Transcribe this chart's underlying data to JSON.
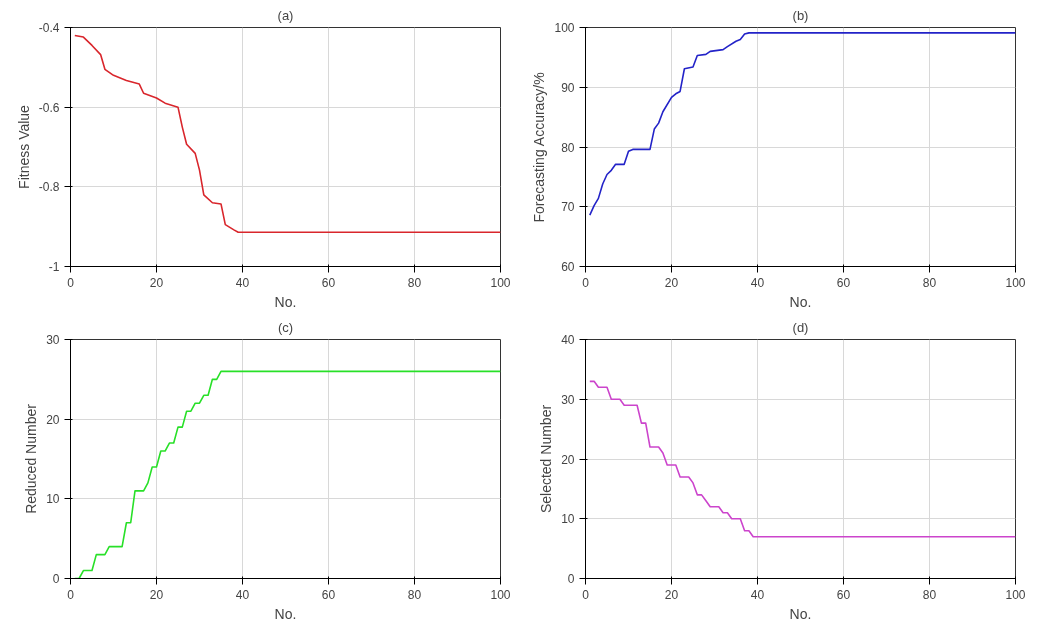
{
  "chart_data": [
    {
      "type": "line",
      "title": "(a)",
      "xlabel": "No.",
      "ylabel": "Fitness Value",
      "xlim": [
        0,
        100
      ],
      "ylim": [
        -1,
        -0.4
      ],
      "xticks": [
        0,
        20,
        40,
        60,
        80,
        100
      ],
      "yticks": [
        -1,
        -0.8,
        -0.6,
        -0.4
      ],
      "grid": true,
      "series": [
        {
          "color": "#d9262c",
          "x": [
            1,
            3,
            5,
            7,
            8,
            10,
            13,
            16,
            17,
            20,
            22,
            25,
            26,
            27,
            29,
            30,
            31,
            33,
            35,
            36,
            38,
            39,
            100
          ],
          "values": [
            -0.42,
            -0.424,
            -0.445,
            -0.468,
            -0.505,
            -0.52,
            -0.533,
            -0.542,
            -0.565,
            -0.577,
            -0.59,
            -0.6,
            -0.65,
            -0.693,
            -0.716,
            -0.758,
            -0.82,
            -0.84,
            -0.843,
            -0.895,
            -0.908,
            -0.914,
            -0.914
          ]
        }
      ]
    },
    {
      "type": "line",
      "title": "(b)",
      "xlabel": "No.",
      "ylabel": "Forecasting Accuracy/%",
      "xlim": [
        0,
        100
      ],
      "ylim": [
        60,
        100
      ],
      "xticks": [
        0,
        20,
        40,
        60,
        80,
        100
      ],
      "yticks": [
        60,
        70,
        80,
        90,
        100
      ],
      "grid": true,
      "series": [
        {
          "color": "#2323c8",
          "x": [
            1,
            2,
            3,
            4,
            5,
            6,
            7,
            9,
            10,
            11,
            15,
            16,
            17,
            18,
            20,
            21,
            22,
            23,
            25,
            26,
            28,
            29,
            32,
            33,
            35,
            36,
            37,
            38,
            100
          ],
          "values": [
            68.6,
            70.2,
            71.4,
            73.8,
            75.4,
            76.1,
            77.1,
            77.1,
            79.3,
            79.6,
            79.6,
            83,
            84,
            85.9,
            88.3,
            88.9,
            89.3,
            93.1,
            93.4,
            95.3,
            95.5,
            96,
            96.3,
            96.8,
            97.7,
            98,
            98.9,
            99.1,
            99.1
          ]
        }
      ]
    },
    {
      "type": "line",
      "title": "(c)",
      "xlabel": "No.",
      "ylabel": "Reduced Number",
      "xlim": [
        0,
        100
      ],
      "ylim": [
        0,
        30
      ],
      "xticks": [
        0,
        20,
        40,
        60,
        80,
        100
      ],
      "yticks": [
        0,
        10,
        20,
        30
      ],
      "grid": true,
      "series": [
        {
          "color": "#28e028",
          "x": [
            1,
            2,
            3,
            5,
            6,
            8,
            9,
            12,
            13,
            14,
            15,
            17,
            18,
            19,
            20,
            21,
            22,
            23,
            24,
            25,
            26,
            27,
            28,
            29,
            30,
            31,
            32,
            33,
            34,
            35,
            36,
            39,
            40,
            100
          ],
          "values": [
            0,
            0,
            1,
            1,
            3,
            3,
            4,
            4,
            7,
            7,
            11,
            11,
            12,
            14,
            14,
            16,
            16,
            17,
            17,
            19,
            19,
            21,
            21,
            22,
            22,
            23,
            23,
            25,
            25,
            26,
            26,
            26,
            26,
            26
          ]
        }
      ]
    },
    {
      "type": "line",
      "title": "(d)",
      "xlabel": "No.",
      "ylabel": "Selected Number",
      "xlim": [
        0,
        100
      ],
      "ylim": [
        0,
        40
      ],
      "xticks": [
        0,
        20,
        40,
        60,
        80,
        100
      ],
      "yticks": [
        0,
        10,
        20,
        30,
        40
      ],
      "grid": true,
      "series": [
        {
          "color": "#cc44cc",
          "x": [
            1,
            2,
            3,
            5,
            6,
            8,
            9,
            12,
            13,
            14,
            15,
            17,
            18,
            19,
            21,
            22,
            24,
            25,
            26,
            27,
            28,
            29,
            31,
            32,
            33,
            34,
            36,
            37,
            38,
            39,
            100
          ],
          "values": [
            33,
            33,
            32,
            32,
            30,
            30,
            29,
            29,
            26,
            26,
            22,
            22,
            21,
            19,
            19,
            17,
            17,
            16,
            14,
            14,
            13,
            12,
            12,
            11,
            11,
            10,
            10,
            8,
            8,
            7,
            7
          ]
        }
      ]
    }
  ]
}
